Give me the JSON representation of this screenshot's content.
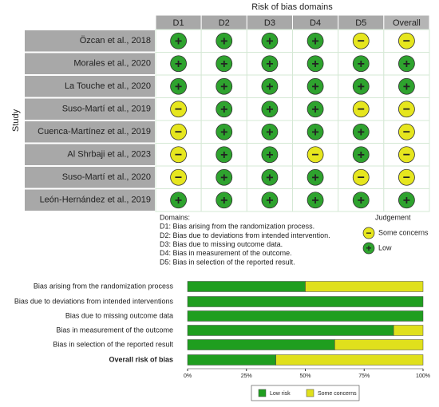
{
  "traffic_light": {
    "title": "Risk of bias domains",
    "y_label": "Study",
    "domains": [
      "D1",
      "D2",
      "D3",
      "D4",
      "D5",
      "Overall"
    ],
    "studies": [
      {
        "name": "Özcan et al., 2018",
        "judgements": [
          "+",
          "+",
          "+",
          "+",
          "−",
          "−"
        ]
      },
      {
        "name": "Morales et al., 2020",
        "judgements": [
          "+",
          "+",
          "+",
          "+",
          "+",
          "+"
        ]
      },
      {
        "name": "La Touche et al., 2020",
        "judgements": [
          "+",
          "+",
          "+",
          "+",
          "+",
          "+"
        ]
      },
      {
        "name": "Suso-Martí et al., 2019",
        "judgements": [
          "−",
          "+",
          "+",
          "+",
          "−",
          "−"
        ]
      },
      {
        "name": "Cuenca-Martínez et al., 2019",
        "judgements": [
          "−",
          "+",
          "+",
          "+",
          "+",
          "−"
        ]
      },
      {
        "name": "Al Shrbaji et al., 2023",
        "judgements": [
          "−",
          "+",
          "+",
          "−",
          "+",
          "−"
        ]
      },
      {
        "name": "Suso-Martí et al., 2020",
        "judgements": [
          "−",
          "+",
          "+",
          "+",
          "−",
          "−"
        ]
      },
      {
        "name": "León-Hernández et al., 2019",
        "judgements": [
          "+",
          "+",
          "+",
          "+",
          "+",
          "+"
        ]
      }
    ],
    "domain_notes": [
      "Domains:",
      "D1: Bias arising from the randomization process.",
      "D2: Bias due to deviations from intended intervention.",
      "D3: Bias due to missing outcome data.",
      "D4: Bias in measurement of the outcome.",
      "D5: Bias in selection of the reported result."
    ],
    "legend": {
      "title": "Judgement",
      "items": [
        {
          "symbol": "−",
          "label": "Some concerns",
          "color": "#e6e61e"
        },
        {
          "symbol": "+",
          "label": "Low",
          "color": "#2ea32e"
        }
      ]
    }
  },
  "chart_data": {
    "type": "stacked_bar_horizontal",
    "categories": [
      "Bias arising from the randomization process",
      "Bias due to deviations from intended interventions",
      "Bias due to missing outcome data",
      "Bias in measurement of the outcome",
      "Bias in selection of the reported result",
      "Overall risk of bias"
    ],
    "series": [
      {
        "name": "Low risk",
        "color": "#1f9e1f",
        "values": [
          50,
          100,
          100,
          87.5,
          62.5,
          37.5
        ]
      },
      {
        "name": "Some concerns",
        "color": "#e0e01c",
        "values": [
          50,
          0,
          0,
          12.5,
          37.5,
          62.5
        ]
      }
    ],
    "xlim": [
      0,
      100
    ],
    "xticks": [
      {
        "value": 0,
        "label": "0%"
      },
      {
        "value": 25,
        "label": "25%"
      },
      {
        "value": 50,
        "label": "50%"
      },
      {
        "value": 75,
        "label": "75%"
      },
      {
        "value": 100,
        "label": "100%"
      }
    ]
  }
}
